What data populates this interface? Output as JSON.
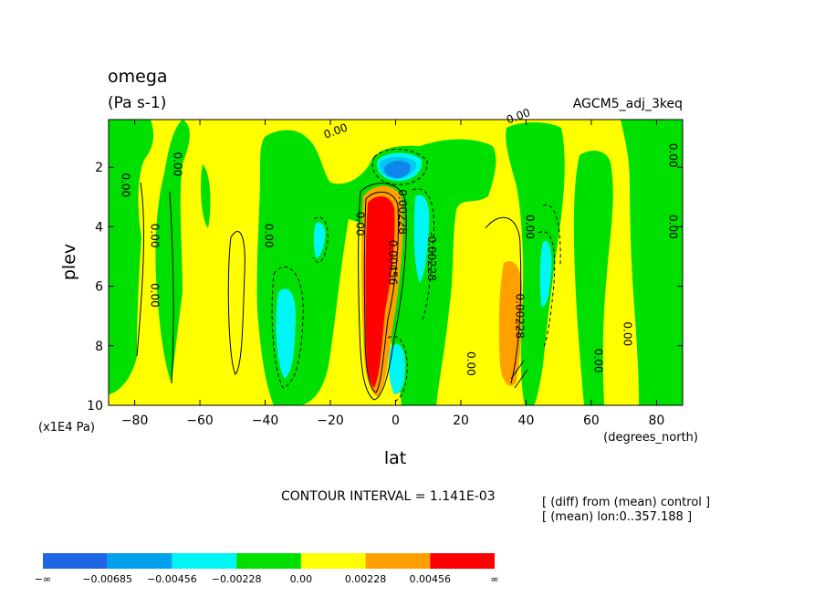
{
  "chart_data": {
    "type": "heatmap",
    "variant": "filled-contour",
    "title": "omega",
    "units": "(Pa s-1)",
    "experiment": "AGCM5_adj_3keq",
    "xlabel": "lat",
    "x_units": "(degrees_north)",
    "ylabel": "plev",
    "y_units": "(x1E4 Pa)",
    "xlim": [
      -88,
      88
    ],
    "ylim": [
      10,
      0.4
    ],
    "y_reversed": true,
    "x_ticks": [
      "−80",
      "−60",
      "−40",
      "−20",
      "0",
      "20",
      "40",
      "60",
      "80"
    ],
    "x_tick_values": [
      -80,
      -60,
      -40,
      -20,
      0,
      20,
      40,
      60,
      80
    ],
    "y_ticks": [
      "2",
      "4",
      "6",
      "8",
      "10"
    ],
    "y_tick_values": [
      2,
      4,
      6,
      8,
      10
    ],
    "contour_interval_text": "CONTOUR INTERVAL = 1.141E-03",
    "contour_interval": 0.001141,
    "notes": [
      "[ (diff) from (mean) control ]",
      "[ (mean) lon:0..357.188 ]"
    ],
    "colorbar": {
      "labels": [
        "−∞",
        "−0.00685",
        "−0.00456",
        "−0.00228",
        "0.00",
        "0.00228",
        "0.00456",
        "∞"
      ],
      "boundaries": [
        -0.00685,
        -0.00456,
        -0.00228,
        0.0,
        0.00228,
        0.00456
      ],
      "colors": [
        "#1f66e6",
        "#00a2ee",
        "#00f5f5",
        "#00e000",
        "#ffff00",
        "#ffa000",
        "#ff0000"
      ]
    },
    "contour_labels": [
      {
        "text": "0.00",
        "lat": -84,
        "plev": 2.6
      },
      {
        "text": "0.00",
        "lat": -68,
        "plev": 1.9
      },
      {
        "text": "0.00",
        "lat": -75,
        "plev": 4.3
      },
      {
        "text": "0.00",
        "lat": -75,
        "plev": 6.3
      },
      {
        "text": "0.00",
        "lat": -40,
        "plev": 4.3
      },
      {
        "text": "0.00",
        "lat": -18,
        "plev": 0.9
      },
      {
        "text": "0.00",
        "lat": -12,
        "plev": 3.9
      },
      {
        "text": "0.00456",
        "lat": -2,
        "plev": 5.2
      },
      {
        "text": "0.00228",
        "lat": 1,
        "plev": 3.5
      },
      {
        "text": "-0.00228",
        "lat": 10,
        "plev": 5.0
      },
      {
        "text": "0.00",
        "lat": 22,
        "plev": 8.6
      },
      {
        "text": "0.00",
        "lat": 40,
        "plev": 4.0
      },
      {
        "text": "0.00228",
        "lat": 37,
        "plev": 7.0
      },
      {
        "text": "0.00",
        "lat": 38,
        "plev": 0.4
      },
      {
        "text": "0.00",
        "lat": 61,
        "plev": 8.5
      },
      {
        "text": "0.00",
        "lat": 70,
        "plev": 7.6
      },
      {
        "text": "0.00",
        "lat": 84,
        "plev": 1.6
      },
      {
        "text": "0.00",
        "lat": 84,
        "plev": 4.0
      }
    ]
  }
}
